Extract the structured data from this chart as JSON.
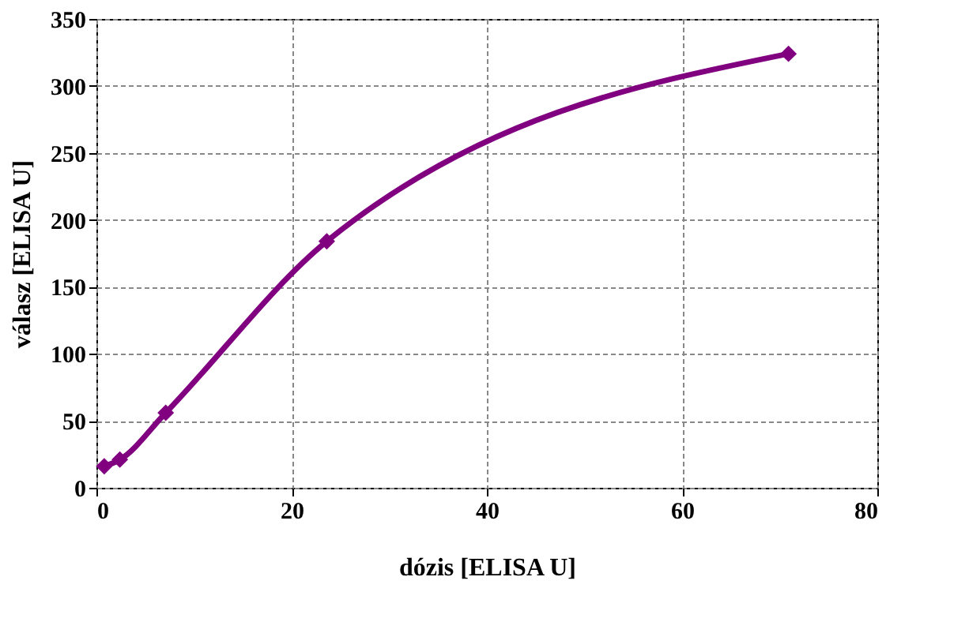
{
  "chart_data": {
    "type": "line",
    "xlabel": "dózis [ELISA U]",
    "ylabel": "válasz [ELISA U]",
    "x": [
      0.8,
      2.4,
      7.1,
      23.6,
      70.9
    ],
    "series": [
      {
        "color": "#800080",
        "values": [
          16,
          21,
          56,
          184,
          324
        ]
      }
    ],
    "xlim": [
      0,
      80
    ],
    "xticks": [
      0,
      20,
      40,
      60,
      80
    ],
    "ylim": [
      0,
      350
    ],
    "yticks": [
      0,
      50,
      100,
      150,
      200,
      250,
      300,
      350
    ],
    "grid": true,
    "marker": "diamond",
    "line_style": "solid"
  }
}
